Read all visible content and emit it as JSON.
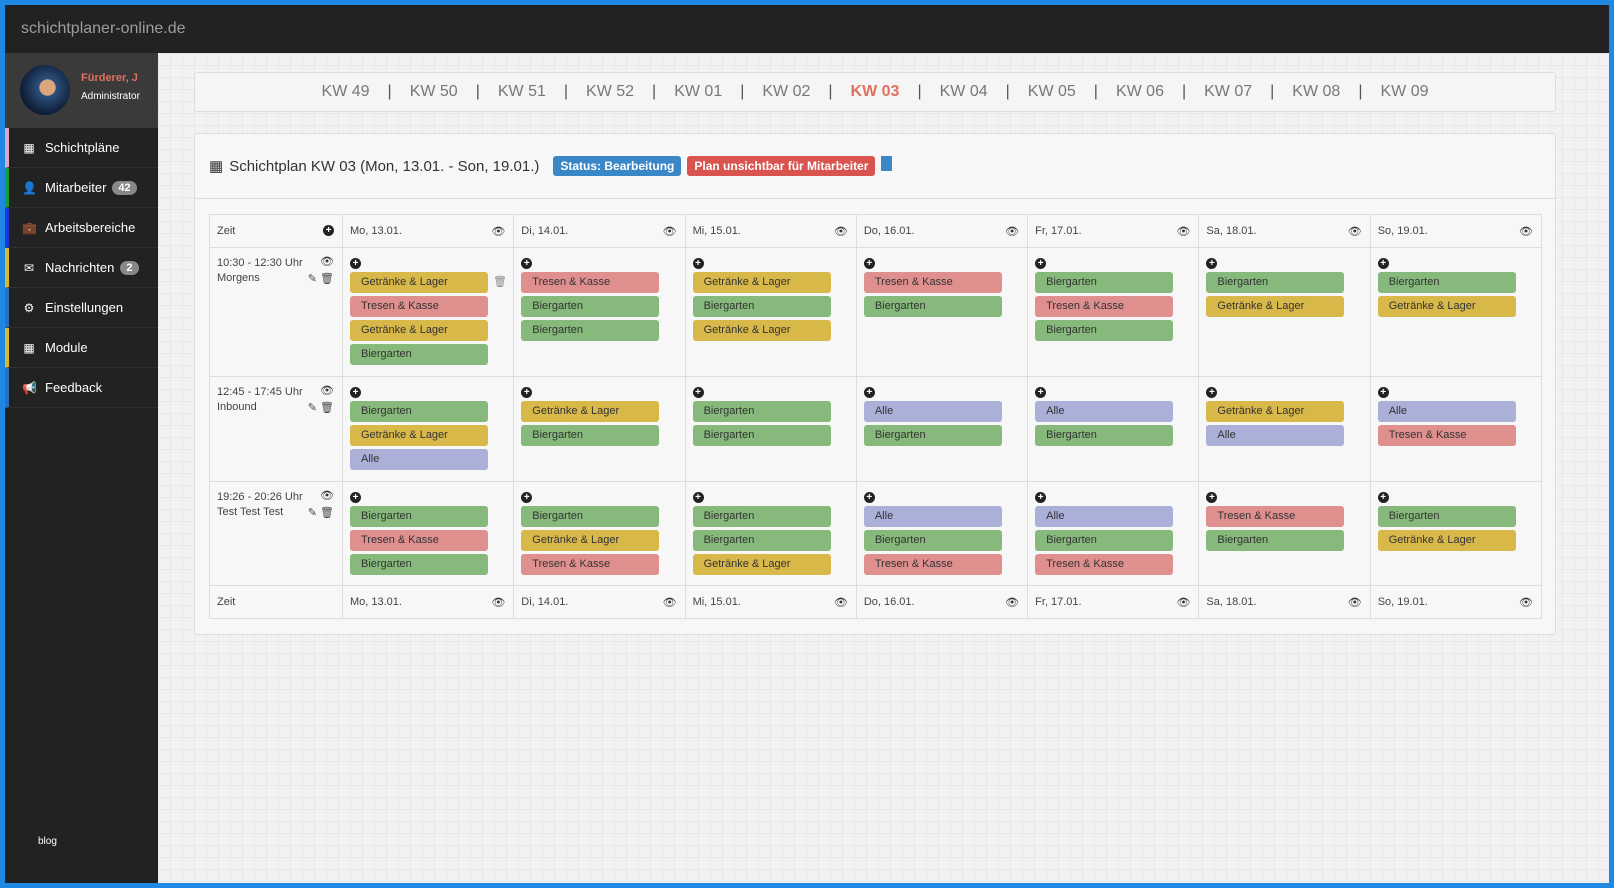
{
  "app": {
    "title": "schichtplaner-online.de"
  },
  "user": {
    "name": "Fürderer, J",
    "role": "Administrator"
  },
  "sidebar": {
    "items": [
      {
        "label": "Schichtpläne",
        "icon": "calendar-icon",
        "accent": "#d8a8c8"
      },
      {
        "label": "Mitarbeiter",
        "icon": "user-icon",
        "badge": "42",
        "accent": "#1a9a3a"
      },
      {
        "label": "Arbeitsbereiche",
        "icon": "briefcase-icon",
        "accent": "#1a3ae0"
      },
      {
        "label": "Nachrichten",
        "icon": "envelope-icon",
        "badge": "2",
        "accent": "#d8b830"
      },
      {
        "label": "Einstellungen",
        "icon": "gear-icon",
        "accent": "#2a70c0"
      },
      {
        "label": "Module",
        "icon": "grid-icon",
        "accent": "#d8b830"
      },
      {
        "label": "Feedback",
        "icon": "bullhorn-icon",
        "accent": "#2a70c0"
      }
    ],
    "footer": "blog"
  },
  "weeks": [
    "KW 49",
    "KW 50",
    "KW 51",
    "KW 52",
    "KW 01",
    "KW 02",
    "KW 03",
    "KW 04",
    "KW 05",
    "KW 06",
    "KW 07",
    "KW 08",
    "KW 09"
  ],
  "active_week": "KW 03",
  "plan": {
    "title": "Schichtplan KW 03 (Mon, 13.01. - Son, 19.01.)",
    "status": "Status: Bearbeitung",
    "visibility": "Plan unsichtbar für Mitarbeiter",
    "status_color": "#3a87c8",
    "visibility_color": "#d9534f"
  },
  "colors": {
    "Getränke & Lager": "#d9b84a",
    "Tresen & Kasse": "#e08f8f",
    "Biergarten": "#86b97b",
    "Alle": "#aab0d8"
  },
  "table": {
    "time_header": "Zeit",
    "days": [
      "Mo, 13.01.",
      "Di, 14.01.",
      "Mi, 15.01.",
      "Do, 16.01.",
      "Fr, 17.01.",
      "Sa, 18.01.",
      "So, 19.01."
    ],
    "rows": [
      {
        "time": "10:30 - 12:30 Uhr",
        "name": "Morgens",
        "height": 129,
        "cells": [
          [
            "Getränke & Lager",
            "Tresen & Kasse",
            "Getränke & Lager",
            "Biergarten"
          ],
          [
            "Tresen & Kasse",
            "Biergarten",
            "Biergarten"
          ],
          [
            "Getränke & Lager",
            "Biergarten",
            "Getränke & Lager"
          ],
          [
            "Tresen & Kasse",
            "Biergarten"
          ],
          [
            "Biergarten",
            "Tresen & Kasse",
            "Biergarten"
          ],
          [
            "Biergarten",
            "Getränke & Lager"
          ],
          [
            "Biergarten",
            "Getränke & Lager"
          ]
        ]
      },
      {
        "time": "12:45 - 17:45 Uhr",
        "name": "Inbound",
        "height": 105,
        "cells": [
          [
            "Biergarten",
            "Getränke & Lager",
            "Alle"
          ],
          [
            "Getränke & Lager",
            "Biergarten"
          ],
          [
            "Biergarten",
            "Biergarten"
          ],
          [
            "Alle",
            "Biergarten"
          ],
          [
            "Alle",
            "Biergarten"
          ],
          [
            "Getränke & Lager",
            "Alle"
          ],
          [
            "Alle",
            "Tresen & Kasse"
          ]
        ]
      },
      {
        "time": "19:26 - 20:26 Uhr",
        "name": "Test Test Test",
        "height": 104,
        "cells": [
          [
            "Biergarten",
            "Tresen & Kasse",
            "Biergarten"
          ],
          [
            "Biergarten",
            "Getränke & Lager",
            "Tresen & Kasse"
          ],
          [
            "Biergarten",
            "Biergarten",
            "Getränke & Lager"
          ],
          [
            "Alle",
            "Biergarten",
            "Tresen & Kasse"
          ],
          [
            "Alle",
            "Biergarten",
            "Tresen & Kasse"
          ],
          [
            "Tresen & Kasse",
            "Biergarten"
          ],
          [
            "Biergarten",
            "Getränke & Lager"
          ]
        ]
      }
    ]
  }
}
